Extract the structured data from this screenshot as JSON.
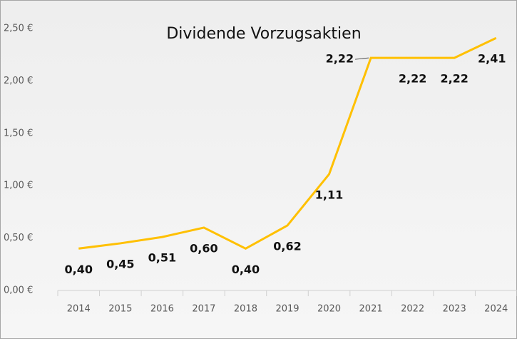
{
  "chart_data": {
    "type": "line",
    "title": "Dividende Vorzugsaktien",
    "categories": [
      "2014",
      "2015",
      "2016",
      "2017",
      "2018",
      "2019",
      "2020",
      "2021",
      "2022",
      "2023",
      "2024"
    ],
    "series": [
      {
        "name": "Dividende",
        "color": "#ffc000",
        "values": [
          0.4,
          0.45,
          0.51,
          0.6,
          0.4,
          0.62,
          1.11,
          2.22,
          2.22,
          2.22,
          2.41
        ],
        "value_labels": [
          "0,40",
          "0,45",
          "0,51",
          "0,60",
          "0,40",
          "0,62",
          "1,11",
          "2,22",
          "2,22",
          "2,22",
          "2,41"
        ]
      }
    ],
    "ylim": [
      0,
      2.5
    ],
    "yticks": [
      {
        "value": 0,
        "label": "0,00 €"
      },
      {
        "value": 0.5,
        "label": "0,50 €"
      },
      {
        "value": 1,
        "label": "1,00 €"
      },
      {
        "value": 1.5,
        "label": "1,50 €"
      },
      {
        "value": 2,
        "label": "2,00 €"
      },
      {
        "value": 2.5,
        "label": "2,50 €"
      }
    ]
  }
}
